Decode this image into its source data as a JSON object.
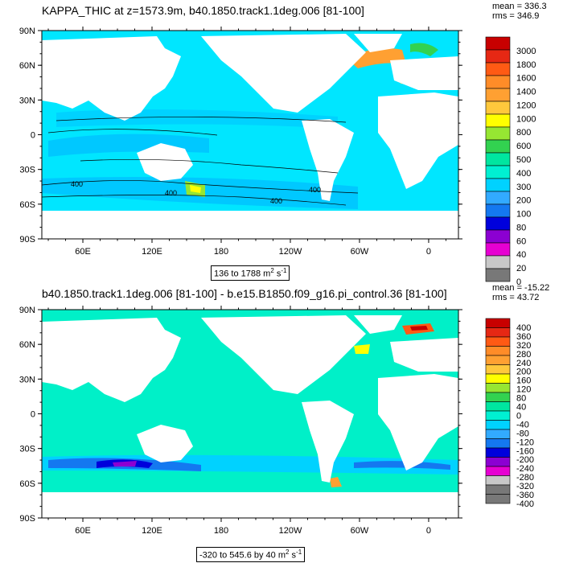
{
  "panels": [
    {
      "title": "KAPPA_THIC at z=1573.9m, b40.1850.track1.1deg.006 [81-100]",
      "stats": {
        "mean": "mean = 336.3",
        "rms": "rms = 346.9"
      },
      "range_text": "136 to 1788 m",
      "range_unit_sup": "2",
      "range_unit_tail": " s",
      "range_unit_sup2": "-1",
      "colorbar_labels": [
        "3000",
        "1800",
        "1600",
        "1400",
        "1200",
        "1000",
        "800",
        "600",
        "500",
        "400",
        "300",
        "200",
        "100",
        "80",
        "60",
        "40",
        "20",
        "0"
      ],
      "colorbar_colors": [
        "#c80000",
        "#e62814",
        "#ff5a14",
        "#ff8c28",
        "#ffa032",
        "#ffc83c",
        "#ffff00",
        "#96e632",
        "#32d250",
        "#00e6a0",
        "#00f0d2",
        "#00d2ff",
        "#32aaff",
        "#1478f0",
        "#0000dc",
        "#8c00d2",
        "#e600d2",
        "#c8c8c8",
        "#787878"
      ],
      "contour_labels": [
        "400",
        "400",
        "400",
        "400"
      ],
      "ocean_color": "#00e6ff",
      "ocean_hi": "#00c8ff"
    },
    {
      "title": "b40.1850.track1.1deg.006 [81-100] - b.e15.B1850.f09_g16.pi_control.36 [81-100]",
      "stats": {
        "mean": "mean = -15.22",
        "rms": "rms = 43.72"
      },
      "range_text": "-320 to 545.6 by 40 m",
      "range_unit_sup": "2",
      "range_unit_tail": " s",
      "range_unit_sup2": "-1",
      "colorbar_labels": [
        "400",
        "360",
        "320",
        "280",
        "240",
        "200",
        "160",
        "120",
        "80",
        "40",
        "0",
        "-40",
        "-80",
        "-120",
        "-160",
        "-200",
        "-240",
        "-280",
        "-320",
        "-360",
        "-400"
      ],
      "colorbar_colors": [
        "#c80000",
        "#e62814",
        "#ff5a14",
        "#ff8c28",
        "#ffa032",
        "#ffc83c",
        "#ffff00",
        "#96e632",
        "#32d250",
        "#00e6a0",
        "#00f0d2",
        "#00d2ff",
        "#32aaff",
        "#1478f0",
        "#0000dc",
        "#8c00d2",
        "#e600d2",
        "#c8c8c8",
        "#787878",
        "#787878"
      ],
      "ocean_color": "#00f0c8",
      "ocean_hi": "#00e6ff"
    }
  ],
  "axes": {
    "lat_labels": [
      "90N",
      "60N",
      "30N",
      "0",
      "30S",
      "60S",
      "90S"
    ],
    "lon_labels": [
      "60E",
      "120E",
      "180",
      "120W",
      "60W",
      "0"
    ]
  }
}
